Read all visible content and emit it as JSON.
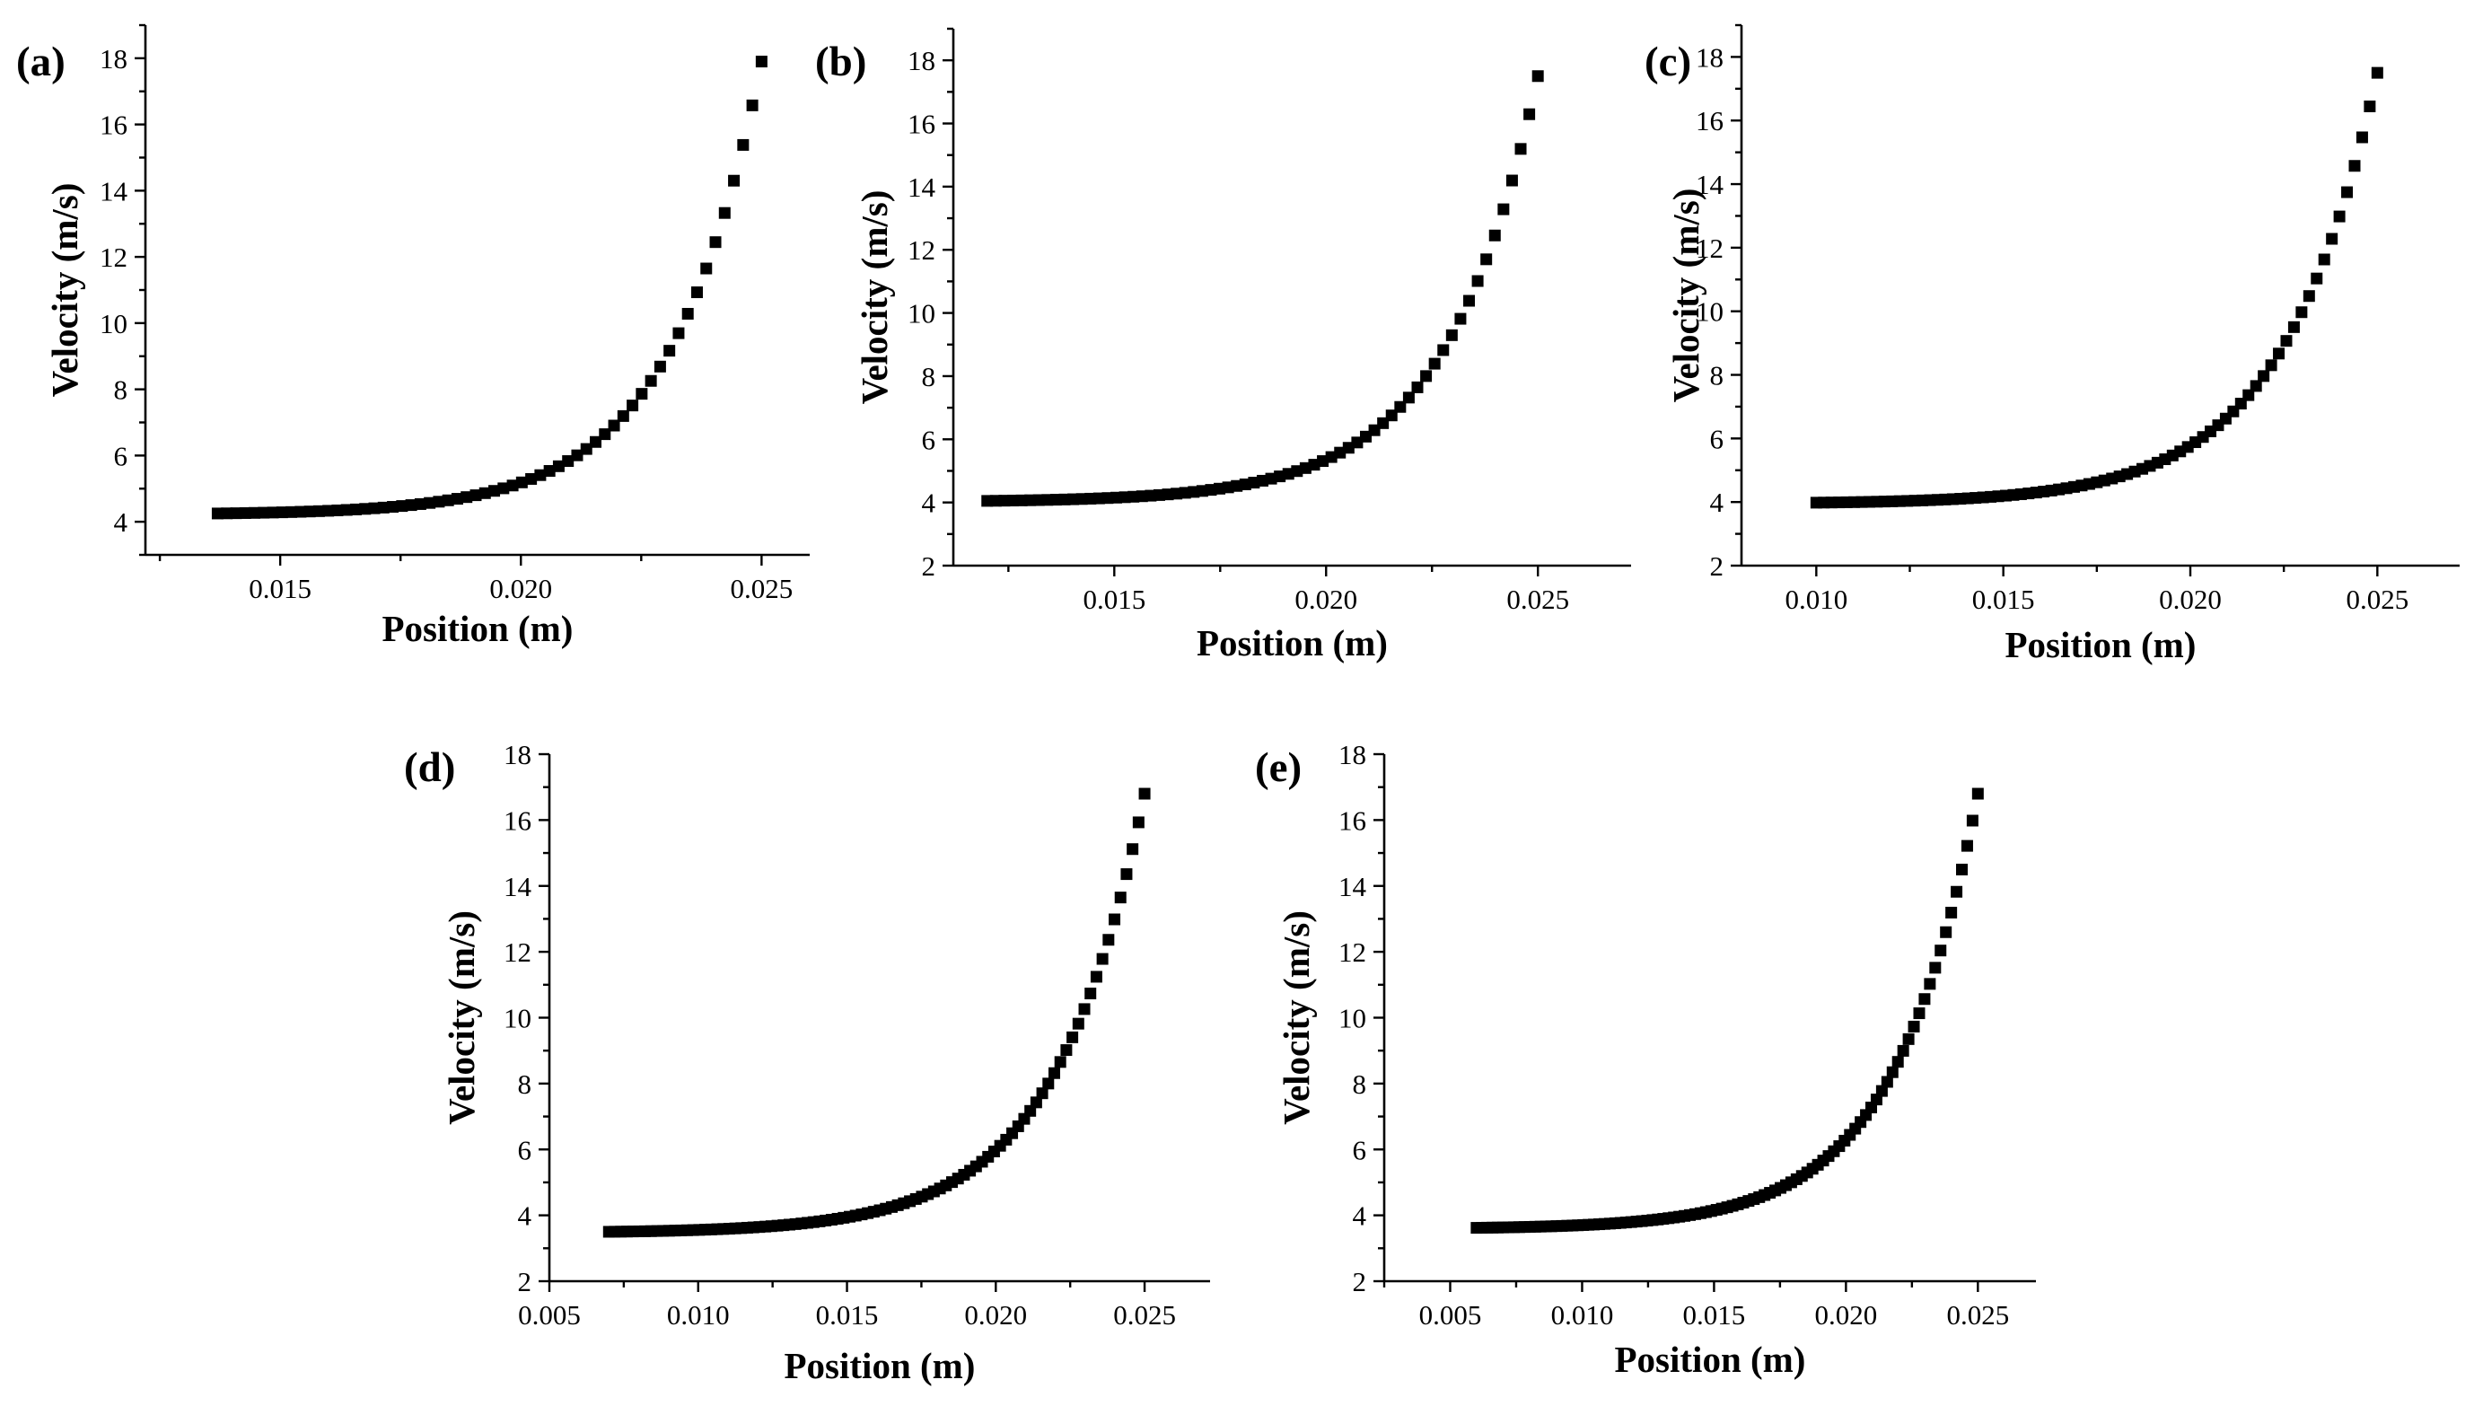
{
  "chart_data": [
    {
      "type": "scatter",
      "panel": "(a)",
      "xlabel": "Position (m)",
      "ylabel": "Velocity (m/s)",
      "xlim": [
        0.0122,
        0.026
      ],
      "ylim": [
        3,
        19
      ],
      "xticks": [
        "0.015",
        "0.020",
        "0.025"
      ],
      "xtick_values": [
        0.015,
        0.02,
        0.025
      ],
      "yticks": [
        "4",
        "6",
        "8",
        "10",
        "12",
        "14",
        "16",
        "18"
      ],
      "ytick_values": [
        4,
        6,
        8,
        10,
        12,
        14,
        16,
        18
      ],
      "series": [
        {
          "name": "Velocity",
          "x_start": 0.0137,
          "x_end": 0.025,
          "n": 60,
          "v_start": 4.25,
          "v_end": 17.9
        }
      ]
    },
    {
      "type": "scatter",
      "panel": "(b)",
      "xlabel": "Position (m)",
      "ylabel": "Velocity (m/s)",
      "xlim": [
        0.0112,
        0.0272
      ],
      "ylim": [
        2,
        19
      ],
      "xticks": [
        "0.015",
        "0.020",
        "0.025"
      ],
      "xtick_values": [
        0.015,
        0.02,
        0.025
      ],
      "yticks": [
        "2",
        "4",
        "6",
        "8",
        "10",
        "12",
        "14",
        "16",
        "18"
      ],
      "ytick_values": [
        2,
        4,
        6,
        8,
        10,
        12,
        14,
        16,
        18
      ],
      "series": [
        {
          "name": "Velocity",
          "x_start": 0.012,
          "x_end": 0.025,
          "n": 65,
          "v_start": 4.05,
          "v_end": 17.5
        }
      ]
    },
    {
      "type": "scatter",
      "panel": "(c)",
      "xlabel": "Position (m)",
      "ylabel": "Velocity (m/s)",
      "xlim": [
        0.008,
        0.0272
      ],
      "ylim": [
        2,
        19
      ],
      "xticks": [
        "0.010",
        "0.015",
        "0.020",
        "0.025"
      ],
      "xtick_values": [
        0.01,
        0.015,
        0.02,
        0.025
      ],
      "yticks": [
        "2",
        "4",
        "6",
        "8",
        "10",
        "12",
        "14",
        "16",
        "18"
      ],
      "ytick_values": [
        2,
        4,
        6,
        8,
        10,
        12,
        14,
        16,
        18
      ],
      "series": [
        {
          "name": "Velocity",
          "x_start": 0.01,
          "x_end": 0.025,
          "n": 75,
          "v_start": 3.98,
          "v_end": 17.5
        }
      ]
    },
    {
      "type": "scatter",
      "panel": "(d)",
      "xlabel": "Position (m)",
      "ylabel": "Velocity (m/s)",
      "xlim": [
        0.005,
        0.0272
      ],
      "ylim": [
        2,
        18
      ],
      "xticks": [
        "0.005",
        "0.010",
        "0.015",
        "0.020",
        "0.025"
      ],
      "xtick_values": [
        0.005,
        0.01,
        0.015,
        0.02,
        0.025
      ],
      "yticks": [
        "2",
        "4",
        "6",
        "8",
        "10",
        "12",
        "14",
        "16",
        "18"
      ],
      "ytick_values": [
        2,
        4,
        6,
        8,
        10,
        12,
        14,
        16,
        18
      ],
      "series": [
        {
          "name": "Velocity",
          "x_start": 0.007,
          "x_end": 0.025,
          "n": 90,
          "v_start": 3.5,
          "v_end": 16.8
        }
      ]
    },
    {
      "type": "scatter",
      "panel": "(e)",
      "xlabel": "Position (m)",
      "ylabel": "Velocity (m/s)",
      "xlim": [
        0.0025,
        0.0272
      ],
      "ylim": [
        2,
        18
      ],
      "xticks": [
        "0.005",
        "0.010",
        "0.015",
        "0.020",
        "0.025"
      ],
      "xtick_values": [
        0.005,
        0.01,
        0.015,
        0.02,
        0.025
      ],
      "yticks": [
        "2",
        "4",
        "6",
        "8",
        "10",
        "12",
        "14",
        "16",
        "18"
      ],
      "ytick_values": [
        2,
        4,
        6,
        8,
        10,
        12,
        14,
        16,
        18
      ],
      "series": [
        {
          "name": "Velocity",
          "x_start": 0.006,
          "x_end": 0.025,
          "n": 95,
          "v_start": 3.62,
          "v_end": 16.8
        }
      ]
    }
  ]
}
